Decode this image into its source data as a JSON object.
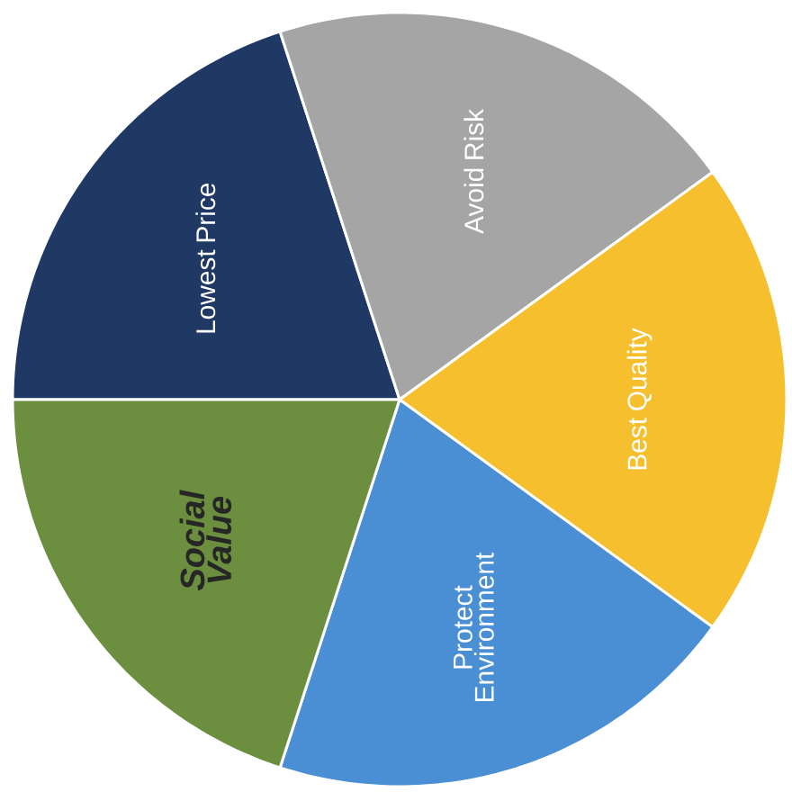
{
  "chart_data": {
    "type": "pie",
    "categories": [
      "Lowest Price",
      "Avoid Risk",
      "Best Quality",
      "Protect Environment",
      "Social Value"
    ],
    "values": [
      20,
      20,
      20,
      20,
      20
    ],
    "colors": [
      "#1f3864",
      "#a5a5a5",
      "#f5bf2e",
      "#4a8fd3",
      "#6b8f3f"
    ]
  }
}
